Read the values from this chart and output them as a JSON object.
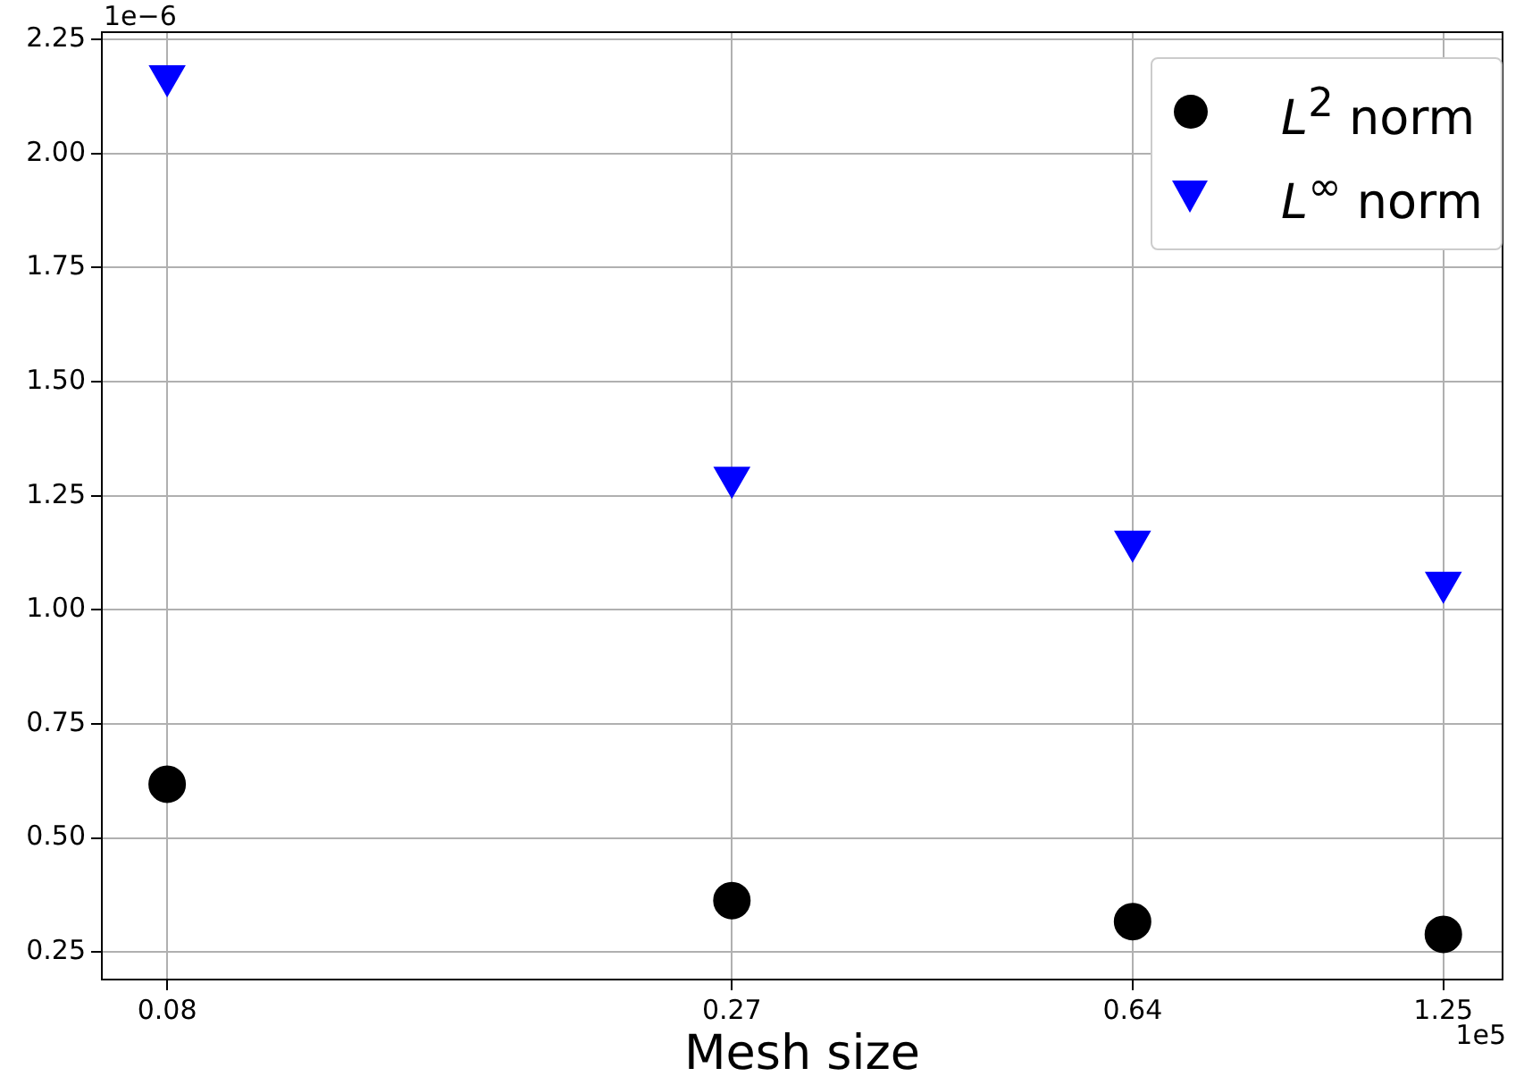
{
  "chart_data": {
    "type": "scatter",
    "xlabel": "Mesh size",
    "log": "x",
    "grid": true,
    "legend": "top right",
    "x": [
      0.08,
      0.27,
      0.64,
      1.25
    ],
    "xlim": [
      0.0695,
      1.42
    ],
    "xticks": [
      0.08,
      0.27,
      0.64,
      1.25
    ],
    "ylim": [
      0.19,
      2.266
    ],
    "yticks": [
      0.25,
      {
        "value": 0.5,
        "label": "0.50"
      },
      0.75,
      {
        "value": 1,
        "label": "1.00"
      },
      1.25,
      {
        "value": 1.5,
        "label": "1.50"
      },
      1.75,
      {
        "value": 2,
        "label": "2.00"
      },
      2.25
    ],
    "series": [
      {
        "name": "L$^{2}$ norm",
        "color": "#000000",
        "marker": "circle",
        "values": [
          0.618,
          0.363,
          0.317,
          0.289
        ]
      },
      {
        "name": "L$^{∞}$ norm",
        "color": "#0000ff",
        "marker": "triangle",
        "values": [
          2.17,
          1.29,
          1.15,
          1.06
        ]
      }
    ],
    "annotations": [
      "1e−6",
      "1e5"
    ]
  }
}
